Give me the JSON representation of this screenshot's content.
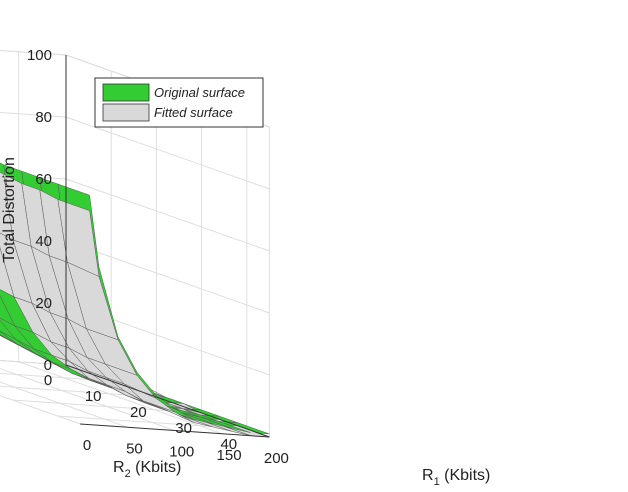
{
  "chart_data": {
    "type": "surface3d",
    "title": "",
    "colors": {
      "original": "#33cc33",
      "fitted": "#d9d9d9",
      "mesh": "#5a5a5a",
      "grid": "#dedede",
      "axis": "#333333"
    },
    "axes": {
      "x": {
        "label_main": "R",
        "label_sub": "1",
        "label_unit": " (Kbits)",
        "range": [
          0,
          200
        ],
        "ticks": [
          0,
          50,
          100,
          150,
          200
        ],
        "tick_labels": [
          "0",
          "50",
          "100",
          "150",
          "200"
        ]
      },
      "y": {
        "label_main": "R",
        "label_sub": "2",
        "label_unit": " (Kbits)",
        "range": [
          0,
          45
        ],
        "ticks": [
          0,
          10,
          20,
          30,
          40
        ],
        "tick_labels": [
          "0",
          "10",
          "20",
          "30",
          "40"
        ]
      },
      "z": {
        "label": "Total Distortion",
        "range": [
          0,
          100
        ],
        "ticks": [
          0,
          20,
          40,
          60,
          80,
          100
        ],
        "tick_labels": [
          "0",
          "20",
          "40",
          "60",
          "80",
          "100"
        ]
      }
    },
    "grid": true,
    "legend": {
      "position": "top-left",
      "entries": [
        {
          "label": "Original surface",
          "series": "original"
        },
        {
          "label": "Fitted surface",
          "series": "fitted"
        }
      ]
    },
    "surface": {
      "x": [
        200,
        180,
        160,
        140,
        120,
        100,
        80,
        60,
        40,
        20,
        10
      ],
      "y": [
        2,
        6,
        10,
        14,
        18,
        22,
        26,
        30,
        34,
        38,
        45
      ],
      "z_original": [
        [
          4,
          5,
          6,
          7,
          9,
          12,
          16,
          23,
          36,
          60,
          84
        ],
        [
          3,
          4,
          5,
          6,
          8,
          11,
          15,
          22,
          34,
          57,
          80
        ],
        [
          2,
          3,
          4,
          5,
          7,
          10,
          14,
          21,
          33,
          55,
          78
        ],
        [
          2,
          2,
          3,
          4,
          6,
          9,
          13,
          20,
          32,
          53,
          76
        ],
        [
          1,
          2,
          2,
          3,
          5,
          8,
          12,
          19,
          31,
          52,
          75
        ],
        [
          1,
          1,
          2,
          3,
          5,
          8,
          12,
          19,
          30,
          52,
          75
        ],
        [
          1,
          1,
          2,
          3,
          5,
          7,
          12,
          18,
          30,
          51,
          74
        ],
        [
          1,
          1,
          2,
          3,
          4,
          7,
          11,
          18,
          30,
          51,
          74
        ],
        [
          1,
          1,
          2,
          3,
          4,
          7,
          11,
          18,
          29,
          51,
          74
        ],
        [
          1,
          1,
          2,
          3,
          4,
          7,
          11,
          18,
          29,
          51,
          74
        ],
        [
          1,
          1,
          2,
          3,
          4,
          7,
          11,
          18,
          29,
          51,
          74
        ]
      ],
      "z_fitted": [
        [
          13,
          13,
          14,
          15,
          17,
          20,
          24,
          31,
          43,
          64,
          85
        ],
        [
          9,
          9,
          10,
          11,
          13,
          16,
          21,
          27,
          39,
          60,
          81
        ],
        [
          6,
          6,
          7,
          8,
          10,
          13,
          18,
          24,
          35,
          56,
          77
        ],
        [
          4,
          4,
          5,
          6,
          8,
          11,
          15,
          22,
          33,
          54,
          75
        ],
        [
          2,
          3,
          3,
          4,
          6,
          9,
          14,
          20,
          31,
          52,
          73
        ],
        [
          1,
          2,
          2,
          3,
          5,
          8,
          12,
          19,
          30,
          51,
          72
        ],
        [
          1,
          1,
          2,
          3,
          5,
          7,
          12,
          18,
          30,
          50,
          71
        ],
        [
          0,
          1,
          1,
          2,
          4,
          7,
          11,
          18,
          29,
          50,
          70
        ],
        [
          0,
          0,
          1,
          2,
          4,
          7,
          11,
          17,
          29,
          49,
          70
        ],
        [
          0,
          0,
          1,
          2,
          4,
          6,
          11,
          17,
          28,
          49,
          69
        ],
        [
          0,
          0,
          1,
          2,
          3,
          6,
          10,
          17,
          28,
          48,
          69
        ]
      ]
    }
  }
}
